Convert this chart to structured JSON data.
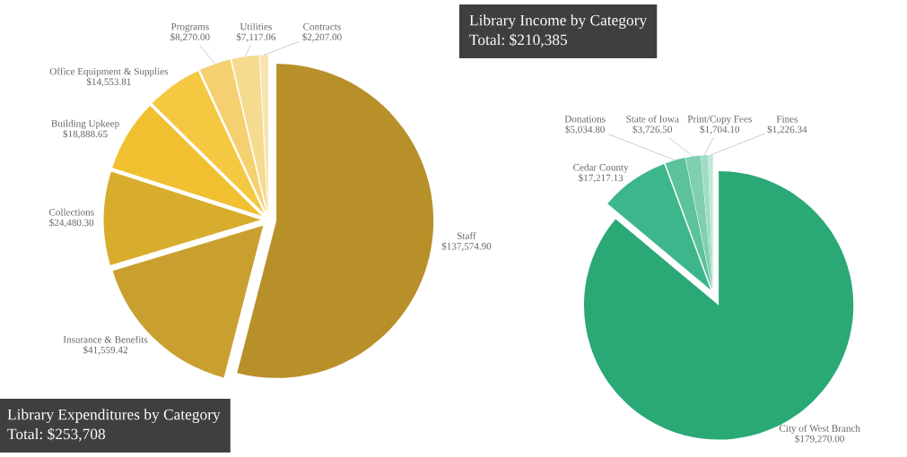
{
  "chart_data": [
    {
      "type": "pie",
      "title": "Library Expenditures by Category",
      "subtitle": "Total: $253,708",
      "categories": [
        "Staff",
        "Insurance & Benefits",
        "Collections",
        "Building Upkeep",
        "Office Equipment & Supplies",
        "Programs",
        "Utilities",
        "Contracts"
      ],
      "values": [
        137574.9,
        41559.42,
        24480.3,
        18888.65,
        14553.81,
        8270.0,
        7117.06,
        2207.0
      ],
      "value_labels": [
        "$137,574.90",
        "$41,559.42",
        "$24,480.30",
        "$18,888.65",
        "$14,553.81",
        "$8,270.00",
        "$7,117.06",
        "$2,207.00"
      ],
      "colors": [
        "#b8902a",
        "#c9a030",
        "#d8ad2e",
        "#f0c030",
        "#f5c842",
        "#f5d070",
        "#f5db90",
        "#f7e4b0"
      ]
    },
    {
      "type": "pie",
      "title": "Library Income by Category",
      "subtitle": "Total: $210,385",
      "categories": [
        "City of West Branch",
        "Cedar County",
        "Donations",
        "State of Iowa",
        "Print/Copy Fees",
        "Fines"
      ],
      "values": [
        179270.0,
        17217.13,
        5034.8,
        3726.5,
        1704.1,
        1226.34
      ],
      "value_labels": [
        "$179,270.00",
        "$17,217.13",
        "$5,034.80",
        "$3,726.50",
        "$1,704.10",
        "$1,226.34"
      ],
      "colors": [
        "#2aa876",
        "#3cb68a",
        "#5bc29a",
        "#7fcfb0",
        "#9edcc3",
        "#bfe8d6"
      ]
    }
  ]
}
